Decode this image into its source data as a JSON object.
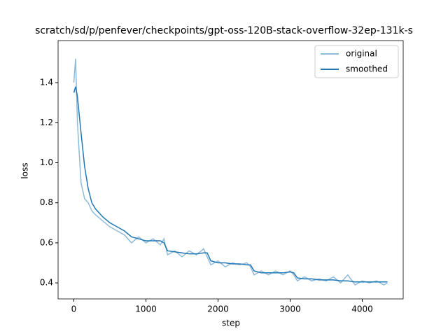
{
  "chart_data": {
    "type": "line",
    "title": "scratch/sd/p/penfever/checkpoints/gpt-oss-120B-stack-overflow-32ep-131k-s",
    "x_label": "step",
    "y_label": "loss",
    "x": [
      0,
      25,
      50,
      100,
      150,
      200,
      250,
      300,
      400,
      500,
      600,
      700,
      800,
      900,
      1000,
      1100,
      1200,
      1250,
      1300,
      1400,
      1500,
      1600,
      1700,
      1800,
      1850,
      1900,
      2000,
      2100,
      2200,
      2300,
      2400,
      2450,
      2500,
      2600,
      2700,
      2800,
      2900,
      3000,
      3050,
      3100,
      3200,
      3300,
      3400,
      3500,
      3600,
      3700,
      3800,
      3900,
      4000,
      4100,
      4200,
      4300,
      4350
    ],
    "series": [
      {
        "name": "original",
        "color": "#8fbbd9",
        "values": [
          1.4,
          1.52,
          1.2,
          0.9,
          0.82,
          0.8,
          0.76,
          0.74,
          0.71,
          0.68,
          0.66,
          0.64,
          0.6,
          0.63,
          0.6,
          0.62,
          0.59,
          0.62,
          0.54,
          0.56,
          0.53,
          0.56,
          0.54,
          0.57,
          0.53,
          0.49,
          0.51,
          0.48,
          0.5,
          0.49,
          0.5,
          0.48,
          0.44,
          0.46,
          0.44,
          0.46,
          0.44,
          0.46,
          0.44,
          0.41,
          0.43,
          0.41,
          0.42,
          0.41,
          0.43,
          0.4,
          0.44,
          0.39,
          0.41,
          0.4,
          0.41,
          0.39,
          0.4
        ]
      },
      {
        "name": "smoothed",
        "color": "#1f77b4",
        "values": [
          1.35,
          1.38,
          1.33,
          1.15,
          0.98,
          0.87,
          0.8,
          0.77,
          0.73,
          0.7,
          0.68,
          0.66,
          0.63,
          0.62,
          0.61,
          0.61,
          0.61,
          0.6,
          0.56,
          0.555,
          0.55,
          0.545,
          0.545,
          0.55,
          0.55,
          0.51,
          0.5,
          0.5,
          0.495,
          0.495,
          0.49,
          0.49,
          0.46,
          0.45,
          0.45,
          0.45,
          0.45,
          0.455,
          0.45,
          0.425,
          0.42,
          0.42,
          0.415,
          0.415,
          0.415,
          0.41,
          0.41,
          0.405,
          0.405,
          0.405,
          0.405,
          0.405,
          0.405
        ]
      }
    ],
    "xlim": [
      -218,
      4568
    ],
    "ylim": [
      0.32,
      1.61
    ],
    "xticks": [
      0,
      1000,
      2000,
      3000,
      4000
    ],
    "yticks": [
      0.4,
      0.6,
      0.8,
      {
        "value": 1.0,
        "label": "1.0"
      },
      1.2,
      1.4
    ],
    "legend": "upper right"
  }
}
